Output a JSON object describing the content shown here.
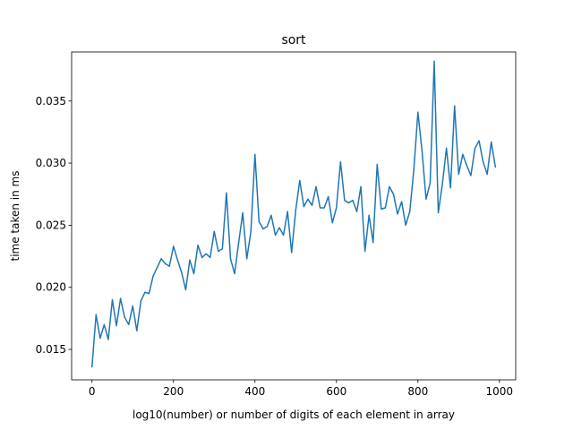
{
  "chart_data": {
    "type": "line",
    "title": "sort",
    "xlabel": "log10(number) or number of digits of each element in array",
    "ylabel": "time taken in ms",
    "xlim": [
      -50,
      1040
    ],
    "ylim": [
      0.01255,
      0.03895
    ],
    "grid": false,
    "xticks": [
      0,
      200,
      400,
      600,
      800,
      1000
    ],
    "xtick_labels": [
      "0",
      "200",
      "400",
      "600",
      "800",
      "1000"
    ],
    "yticks": [
      0.015,
      0.02,
      0.025,
      0.03,
      0.035
    ],
    "ytick_labels": [
      "0.015",
      "0.020",
      "0.025",
      "0.030",
      "0.035"
    ],
    "series": [
      {
        "color": "#1f77b4",
        "x": [
          0,
          10,
          20,
          30,
          40,
          50,
          60,
          70,
          80,
          90,
          100,
          110,
          120,
          130,
          140,
          150,
          160,
          170,
          180,
          190,
          200,
          210,
          220,
          230,
          240,
          250,
          260,
          270,
          280,
          290,
          300,
          310,
          320,
          330,
          340,
          350,
          360,
          370,
          380,
          390,
          400,
          410,
          420,
          430,
          440,
          450,
          460,
          470,
          480,
          490,
          500,
          510,
          520,
          530,
          540,
          550,
          560,
          570,
          580,
          590,
          600,
          610,
          620,
          630,
          640,
          650,
          660,
          670,
          680,
          690,
          700,
          710,
          720,
          730,
          740,
          750,
          760,
          770,
          780,
          790,
          800,
          810,
          820,
          830,
          840,
          850,
          860,
          870,
          880,
          890,
          900,
          910,
          920,
          930,
          940,
          950,
          960,
          970,
          980,
          990
        ],
        "y": [
          0.0136,
          0.0178,
          0.0159,
          0.017,
          0.0158,
          0.019,
          0.0169,
          0.0191,
          0.0176,
          0.017,
          0.0185,
          0.0165,
          0.0189,
          0.0196,
          0.0195,
          0.0209,
          0.0216,
          0.0223,
          0.0219,
          0.0217,
          0.0233,
          0.0222,
          0.0212,
          0.0198,
          0.0222,
          0.0211,
          0.0234,
          0.0224,
          0.0227,
          0.0224,
          0.0245,
          0.0229,
          0.0231,
          0.0276,
          0.0223,
          0.0211,
          0.0236,
          0.026,
          0.0223,
          0.0245,
          0.0307,
          0.0253,
          0.0247,
          0.0249,
          0.0258,
          0.0242,
          0.0248,
          0.0242,
          0.0261,
          0.0228,
          0.0262,
          0.0286,
          0.0265,
          0.0271,
          0.0266,
          0.0281,
          0.0264,
          0.0264,
          0.0273,
          0.0252,
          0.0264,
          0.0301,
          0.027,
          0.0268,
          0.027,
          0.0261,
          0.0281,
          0.0229,
          0.0258,
          0.0236,
          0.0299,
          0.0263,
          0.0264,
          0.0281,
          0.0275,
          0.0259,
          0.0269,
          0.025,
          0.0261,
          0.0295,
          0.0341,
          0.031,
          0.0271,
          0.0284,
          0.0382,
          0.026,
          0.0283,
          0.0312,
          0.028,
          0.0346,
          0.0291,
          0.0307,
          0.0298,
          0.029,
          0.0312,
          0.0318,
          0.0301,
          0.0291,
          0.0317,
          0.0297
        ]
      }
    ]
  }
}
